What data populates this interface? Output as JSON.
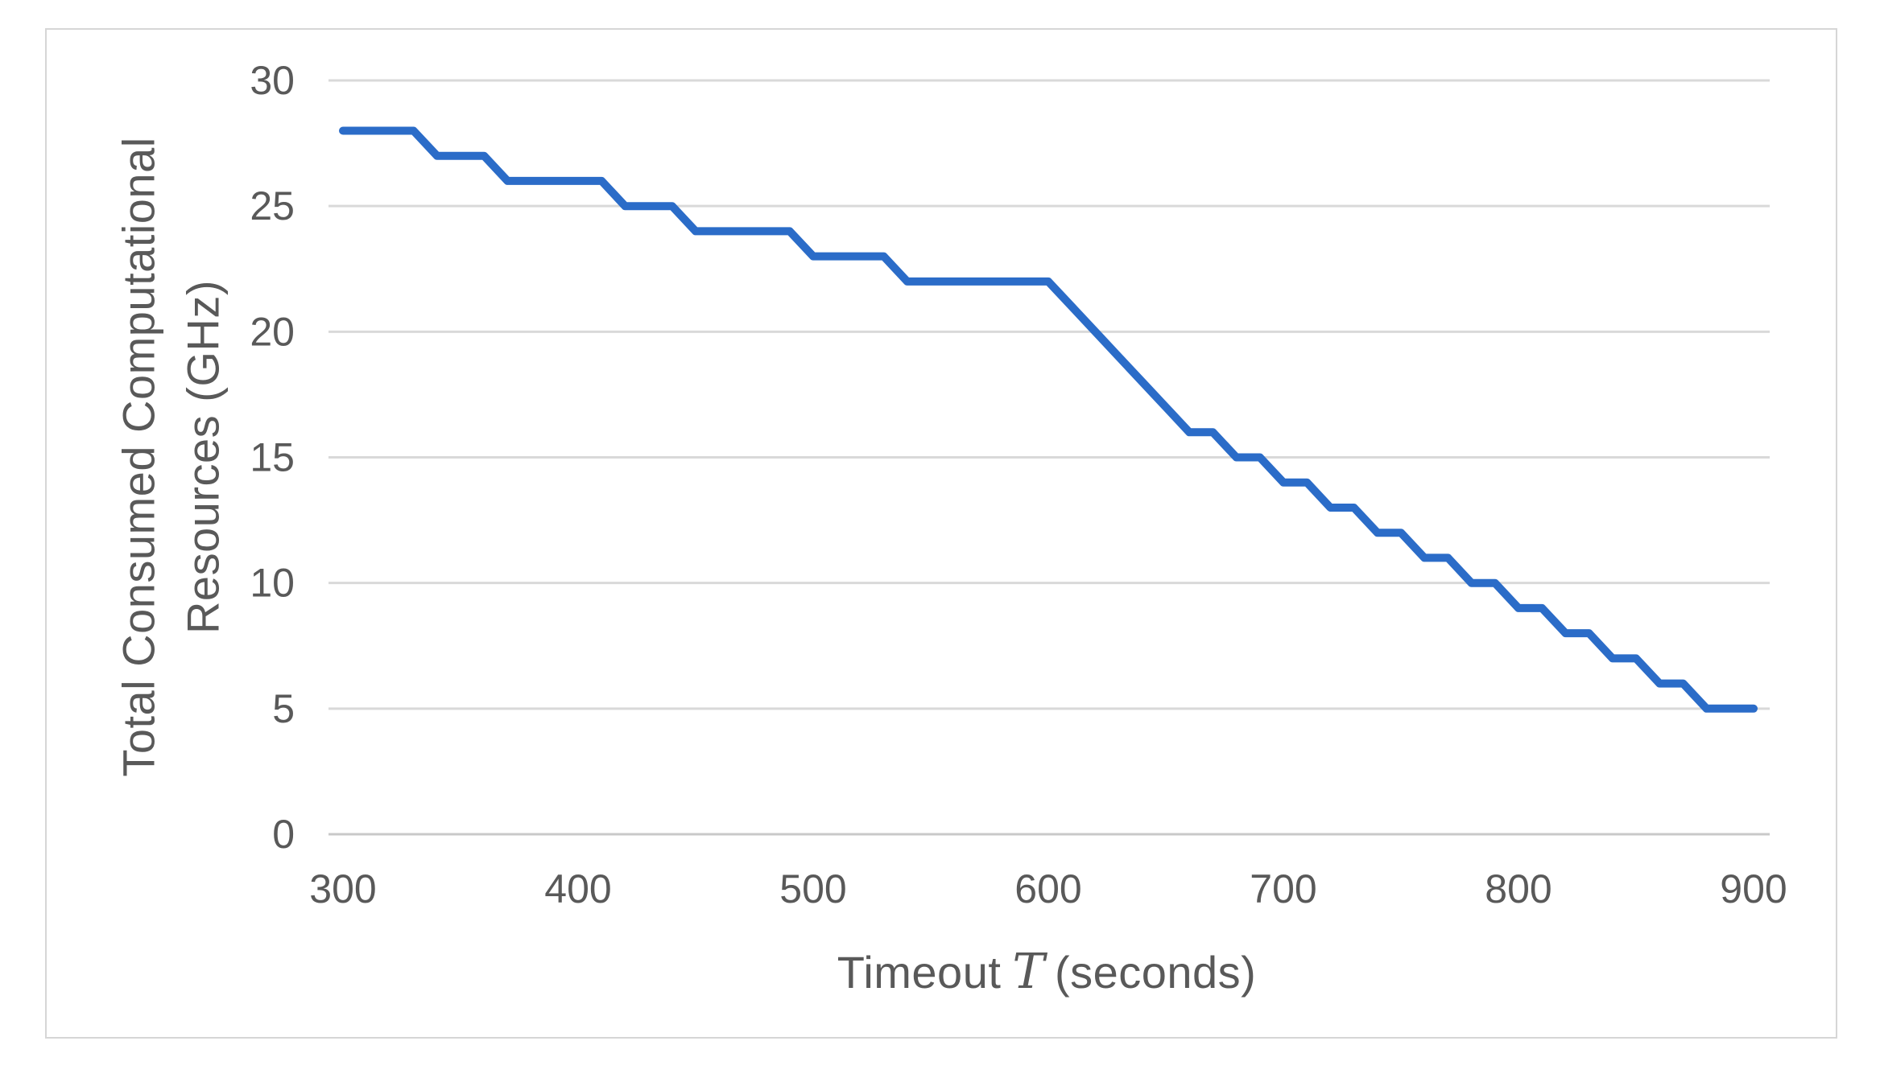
{
  "chart_data": {
    "type": "line",
    "title": "",
    "xlabel_full": "Timeout 𝒯 (seconds)",
    "xlabel_parts": {
      "prefix": "Timeout",
      "symbol": "T",
      "suffix": "(seconds)"
    },
    "ylabel_lines": [
      "Total Consumed Computational",
      "Resources (GHz)"
    ],
    "x": [
      300,
      310,
      320,
      330,
      340,
      350,
      360,
      370,
      380,
      390,
      400,
      410,
      420,
      430,
      440,
      450,
      460,
      470,
      480,
      490,
      500,
      510,
      520,
      530,
      540,
      550,
      560,
      570,
      580,
      590,
      600,
      610,
      620,
      630,
      640,
      650,
      660,
      670,
      680,
      690,
      700,
      710,
      720,
      730,
      740,
      750,
      760,
      770,
      780,
      790,
      800,
      810,
      820,
      830,
      840,
      850,
      860,
      870,
      880,
      890,
      900
    ],
    "series": [
      {
        "name": "Total Consumed Computational Resources",
        "values": [
          28,
          28,
          28,
          28,
          27,
          27,
          27,
          26,
          26,
          26,
          26,
          26,
          25,
          25,
          25,
          24,
          24,
          24,
          24,
          24,
          23,
          23,
          23,
          23,
          22,
          22,
          22,
          22,
          22,
          22,
          22,
          21,
          20,
          19,
          18,
          17,
          16,
          16,
          15,
          15,
          14,
          14,
          13,
          13,
          12,
          12,
          11,
          11,
          10,
          10,
          9,
          9,
          8,
          8,
          7,
          7,
          6,
          6,
          5,
          5,
          5
        ]
      }
    ],
    "x_ticks": [
      300,
      400,
      500,
      600,
      700,
      800,
      900
    ],
    "y_ticks": [
      0,
      5,
      10,
      15,
      20,
      25,
      30
    ],
    "xlim": [
      300,
      900
    ],
    "ylim": [
      0,
      30
    ],
    "grid": "horizontal-only",
    "legend": "none",
    "colors": {
      "line": "#2B6CC8",
      "gridline": "#D9D9D9",
      "axis_line": "#C9C9C9",
      "labels": "#595959",
      "frame_border": "#D6D6D6",
      "background": "#FFFFFF"
    }
  }
}
